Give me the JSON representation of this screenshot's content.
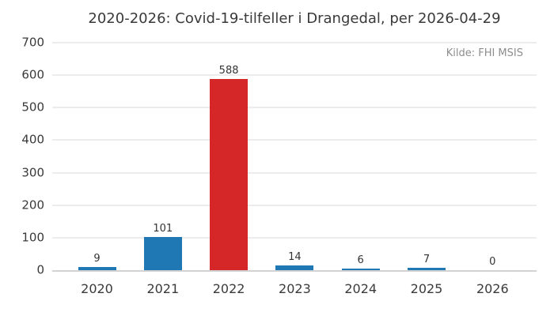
{
  "chart_data": {
    "type": "bar",
    "title": "2020-2026: Covid-19-tilfeller i Drangedal, per 2026-04-29",
    "annotation": "Kilde: FHI MSIS",
    "categories": [
      "2020",
      "2021",
      "2022",
      "2023",
      "2024",
      "2025",
      "2026"
    ],
    "values": [
      9,
      101,
      588,
      14,
      6,
      7,
      0
    ],
    "value_labels": [
      "9",
      "101",
      "588",
      "14",
      "6",
      "7",
      "0"
    ],
    "bar_colors": [
      "#1f77b4",
      "#1f77b4",
      "#d62728",
      "#1f77b4",
      "#1f77b4",
      "#1f77b4",
      "#1f77b4"
    ],
    "xlabel": "",
    "ylabel": "",
    "ylim": [
      0,
      700
    ],
    "yticks": [
      0,
      100,
      200,
      300,
      400,
      500,
      600,
      700
    ],
    "grid": true,
    "legend": false,
    "colors": {
      "default_bar": "#1f77b4",
      "highlight_bar": "#d62728",
      "gridline": "#ececec",
      "axis_line": "#d2d2d2",
      "tick_text": "#3a3a3a",
      "value_text": "#333333",
      "source_text": "#8e8e8e",
      "background": "#ffffff"
    }
  }
}
